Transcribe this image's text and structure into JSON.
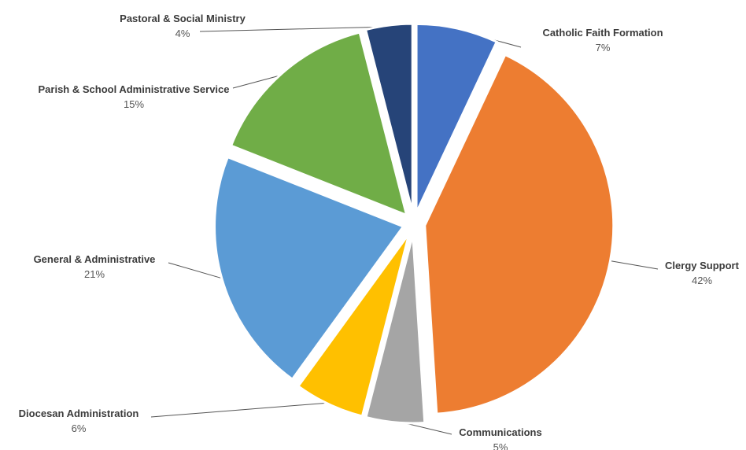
{
  "chart_data": {
    "type": "pie",
    "title": "",
    "slices": [
      {
        "label": "Catholic Faith Formation",
        "value": 7,
        "value_label": "7%",
        "color": "#4472c4"
      },
      {
        "label": "Clergy Support",
        "value": 42,
        "value_label": "42%",
        "color": "#ed7d31"
      },
      {
        "label": "Communications",
        "value": 5,
        "value_label": "5%",
        "color": "#a5a5a5"
      },
      {
        "label": "Diocesan Administration",
        "value": 6,
        "value_label": "6%",
        "color": "#ffc000"
      },
      {
        "label": "General & Administrative",
        "value": 21,
        "value_label": "21%",
        "color": "#5b9bd5"
      },
      {
        "label": "Parish & School Administrative Service",
        "value": 15,
        "value_label": "15%",
        "color": "#70ad47"
      },
      {
        "label": "Pastoral & Social Ministry",
        "value": 4,
        "value_label": "4%",
        "color": "#264478"
      }
    ],
    "legend": "none",
    "exploded": true
  }
}
